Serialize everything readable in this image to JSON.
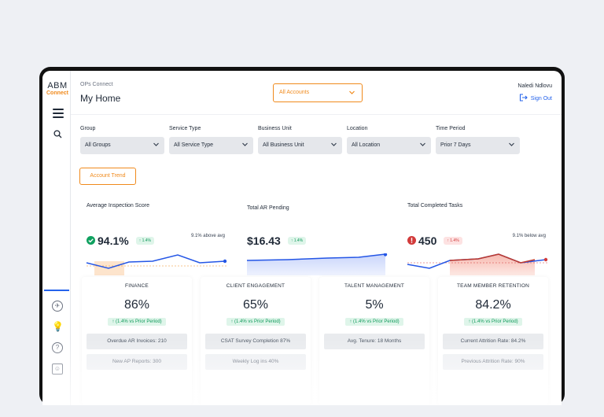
{
  "brand": {
    "line1": "ABM",
    "line2": "Connect"
  },
  "header": {
    "app_name": "OPs Connect",
    "page_title": "My Home",
    "account_select": "All Accounts",
    "user_name": "Naledi Ndlovu",
    "sign_out": "Sign Out"
  },
  "filters": [
    {
      "label": "Group",
      "value": "All Groups"
    },
    {
      "label": "Service Type",
      "value": "All Service Type"
    },
    {
      "label": "Business Unit",
      "value": "All Business Unit"
    },
    {
      "label": "Location",
      "value": "All Location"
    },
    {
      "label": "Time Period",
      "value": "Prior 7 Days"
    }
  ],
  "account_trend_button": "Account Trend",
  "kpis": [
    {
      "title": "Average Inspection Score",
      "value": "94.1%",
      "change": "↑ 1.4%",
      "note": "9.1% above avg",
      "status": "good"
    },
    {
      "title": "Total AR Pending",
      "value": "$16.43",
      "change": "↑ 1.4%",
      "note": "",
      "status": "neutral"
    },
    {
      "title": "Total Completed Tasks",
      "value": "450",
      "change": "↑ 1.4%",
      "note": "9.1% below avg",
      "status": "bad"
    }
  ],
  "cards": [
    {
      "title": "FINANCE",
      "value": "86%",
      "change": "↑ (1.4% vs Prior Period)",
      "row1": "Overdue AR Invoices: 210",
      "row2": "New AP Reports: 300"
    },
    {
      "title": "CLIENT ENGAGEMENT",
      "value": "65%",
      "change": "↑ (1.4% vs Prior Period)",
      "row1": "CSAT Survey Completion 87%",
      "row2": "Weekly Log ins 40%"
    },
    {
      "title": "TALENT MANAGEMENT",
      "value": "5%",
      "change": "↑ (1.4% vs Prior Period)",
      "row1": "Avg. Tenure: 18 Months",
      "row2": ""
    },
    {
      "title": "TEAM MEMBER RETENTION",
      "value": "84.2%",
      "change": "↑ (1.4% vs Prior Period)",
      "row1": "Current Attrition Rate: 84.2%",
      "row2": "Previous Attrition Rate: 90%"
    }
  ],
  "colors": {
    "accent": "#f08a1c",
    "link": "#2563eb",
    "good": "#10a160",
    "bad": "#d23b3b"
  }
}
